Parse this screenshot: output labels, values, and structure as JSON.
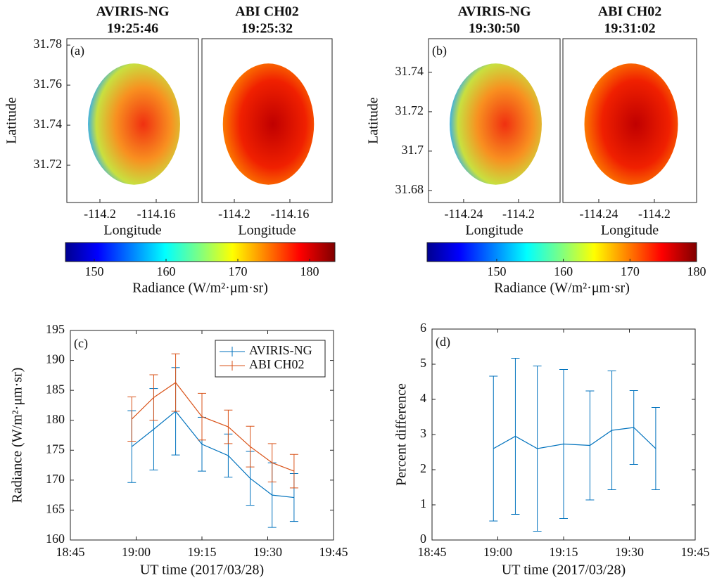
{
  "chart_data": [
    {
      "type": "map",
      "label": "(a)",
      "xlabel": "Longitude",
      "ylabel": "Latitude",
      "ylim": [
        31.7014,
        31.7832
      ],
      "yticks": [
        31.72,
        31.74,
        31.76,
        31.78
      ],
      "panels": [
        {
          "title": [
            "AVIRIS-NG",
            "19:25:46"
          ],
          "xlim": [
            -114.2235,
            -114.13
          ],
          "xticks": [
            -114.2,
            -114.16
          ]
        },
        {
          "title": [
            "ABI CH02",
            "19:25:32"
          ],
          "xlim": [
            -114.2233,
            -114.1296
          ],
          "xticks": [
            -114.2,
            -114.16
          ]
        }
      ],
      "colorbar": {
        "label": "Radiance (W/m²·μm·sr)",
        "lim": [
          145.98,
          183.53
        ],
        "ticks": [
          150,
          160,
          170,
          180
        ]
      }
    },
    {
      "type": "map",
      "label": "(b)",
      "xlabel": "Longitude",
      "ylabel": "Latitude",
      "ylim": [
        31.6739,
        31.7571
      ],
      "yticks": [
        31.68,
        31.7,
        31.72,
        31.74
      ],
      "panels": [
        {
          "title": [
            "AVIRIS-NG",
            "19:30:50"
          ],
          "xlim": [
            -114.2656,
            -114.1697
          ],
          "xticks": [
            -114.24,
            -114.2
          ]
        },
        {
          "title": [
            "ABI CH02",
            "19:31:02"
          ],
          "xlim": [
            -114.2658,
            -114.1696
          ],
          "xticks": [
            -114.24,
            -114.2
          ]
        }
      ],
      "colorbar": {
        "label": "Radiance (W/m²·μm·sr)",
        "lim": [
          139.55,
          180
        ],
        "ticks": [
          150,
          160,
          170,
          180
        ]
      }
    },
    {
      "type": "errorbar",
      "label": "(c)",
      "xlabel": "UT time (2017/03/28)",
      "ylabel": "Radiance (W/m²·μm·sr)",
      "x": [
        1139,
        1144,
        1149,
        1155,
        1161,
        1166,
        1171,
        1176
      ],
      "xlim": [
        1125,
        1185
      ],
      "xticks": [
        {
          "value": 1125,
          "label": "18:45"
        },
        {
          "value": 1140,
          "label": "19:00"
        },
        {
          "value": 1155,
          "label": "19:15"
        },
        {
          "value": 1170,
          "label": "19:30"
        },
        {
          "value": 1185,
          "label": "19:45"
        }
      ],
      "ylim": [
        160,
        195
      ],
      "yticks": [
        160,
        165,
        170,
        175,
        180,
        185,
        190,
        195
      ],
      "legend": "top-right",
      "series": [
        {
          "name": "AVIRIS-NG",
          "color": "#0072bd",
          "values": [
            175.6,
            178.5,
            181.5,
            176,
            174.1,
            170.3,
            167.5,
            167.1
          ],
          "errors": [
            6,
            6.8,
            7.3,
            4.5,
            3.6,
            4.5,
            5.4,
            4
          ]
        },
        {
          "name": "ABI CH02",
          "color": "#d95319",
          "values": [
            180.2,
            183.8,
            186.3,
            180.6,
            178.9,
            175.6,
            172.9,
            171.5
          ],
          "errors": [
            3.7,
            3.8,
            4.8,
            3.9,
            2.8,
            3.4,
            3.2,
            2.8
          ]
        }
      ]
    },
    {
      "type": "errorbar",
      "label": "(d)",
      "xlabel": "UT time (2017/03/28)",
      "ylabel": "Percent  difference",
      "x": [
        1139,
        1144,
        1149,
        1155,
        1161,
        1166,
        1171,
        1176
      ],
      "xlim": [
        1125,
        1185
      ],
      "xticks": [
        {
          "value": 1125,
          "label": "18:45"
        },
        {
          "value": 1140,
          "label": "19:00"
        },
        {
          "value": 1155,
          "label": "19:15"
        },
        {
          "value": 1170,
          "label": "19:30"
        },
        {
          "value": 1185,
          "label": "19:45"
        }
      ],
      "ylim": [
        0,
        6
      ],
      "yticks": [
        0,
        1,
        2,
        3,
        4,
        5,
        6
      ],
      "series": [
        {
          "color": "#0072bd",
          "values": [
            2.6,
            2.95,
            2.6,
            2.73,
            2.69,
            3.12,
            3.2,
            2.6
          ],
          "errors": [
            2.06,
            2.22,
            2.35,
            2.12,
            1.55,
            1.69,
            1.05,
            1.17
          ]
        }
      ]
    }
  ]
}
